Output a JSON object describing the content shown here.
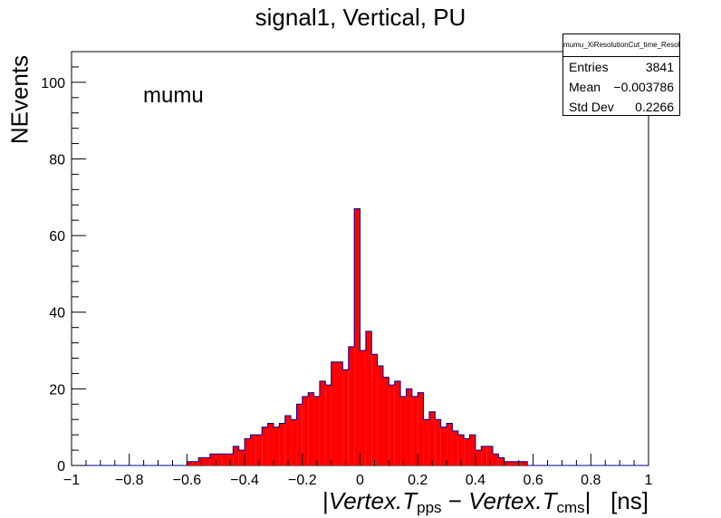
{
  "chart_data": {
    "type": "bar",
    "title": "signal1, Vertical, PU",
    "ylabel": "NEvents",
    "annotation": "mumu",
    "xlabel": {
      "open": "|",
      "a": "Vertex.T",
      "a_sub": "pps",
      "minus": " − ",
      "b": "Vertex.T",
      "b_sub": "cms",
      "close": "|",
      "unit": "[ns]"
    },
    "xlim": [
      -1,
      1
    ],
    "ylim": [
      0,
      108
    ],
    "x_ticks": [
      "−1",
      "−0.8",
      "−0.6",
      "−0.4",
      "−0.2",
      "0",
      "0.2",
      "0.4",
      "0.6",
      "0.8",
      "1"
    ],
    "y_ticks": [
      "0",
      "20",
      "40",
      "60",
      "80",
      "100"
    ],
    "bin_width": 0.02,
    "fill_color": "#ff0000",
    "line_color": "#000099",
    "bins_low_edge": [
      -1.0,
      -0.98,
      -0.96,
      -0.94,
      -0.92,
      -0.9,
      -0.88,
      -0.86,
      -0.84,
      -0.82,
      -0.8,
      -0.78,
      -0.76,
      -0.74,
      -0.72,
      -0.7,
      -0.68,
      -0.66,
      -0.64,
      -0.62,
      -0.6,
      -0.58,
      -0.56,
      -0.54,
      -0.52,
      -0.5,
      -0.48,
      -0.46,
      -0.44,
      -0.42,
      -0.4,
      -0.38,
      -0.36,
      -0.34,
      -0.32,
      -0.3,
      -0.28,
      -0.26,
      -0.24,
      -0.22,
      -0.2,
      -0.18,
      -0.16,
      -0.14,
      -0.12,
      -0.1,
      -0.08,
      -0.06,
      -0.04,
      -0.02,
      0.0,
      0.02,
      0.04,
      0.06,
      0.08,
      0.1,
      0.12,
      0.14,
      0.16,
      0.18,
      0.2,
      0.22,
      0.24,
      0.26,
      0.28,
      0.3,
      0.32,
      0.34,
      0.36,
      0.38,
      0.4,
      0.42,
      0.44,
      0.46,
      0.48,
      0.5,
      0.52,
      0.54,
      0.56,
      0.58,
      0.6,
      0.62,
      0.64,
      0.66,
      0.68,
      0.7,
      0.72,
      0.74,
      0.76,
      0.78,
      0.8,
      0.82,
      0.84,
      0.86,
      0.88,
      0.9,
      0.92,
      0.94,
      0.96,
      0.98
    ],
    "values": [
      0,
      0,
      0,
      0,
      0,
      0,
      0,
      0,
      0,
      0,
      0,
      0,
      0,
      0,
      0,
      0,
      0,
      0,
      0,
      0,
      1,
      1,
      2,
      2,
      3,
      3,
      3,
      3,
      5,
      4,
      7,
      8,
      8,
      10,
      11,
      10,
      11,
      13,
      12,
      16,
      18,
      19,
      18,
      22,
      21,
      27,
      27,
      25,
      31,
      67,
      30,
      35,
      29,
      26,
      23,
      21,
      22,
      18,
      20,
      18,
      19,
      12,
      14,
      12,
      10,
      11,
      9,
      8,
      7,
      8,
      4,
      5,
      5,
      3,
      2,
      1,
      1,
      1,
      1,
      0,
      0,
      0,
      0,
      0,
      0,
      0,
      0,
      0,
      0,
      0,
      0,
      0,
      0,
      0,
      0,
      0,
      0,
      0,
      0,
      0
    ]
  },
  "stats": {
    "name": "mumu_XiResolutionCut_time_Resolution",
    "rows": [
      {
        "label": "Entries",
        "value": "3841"
      },
      {
        "label": "Mean",
        "value": "−0.003786"
      },
      {
        "label": "Std Dev",
        "value": "0.2266"
      }
    ]
  }
}
